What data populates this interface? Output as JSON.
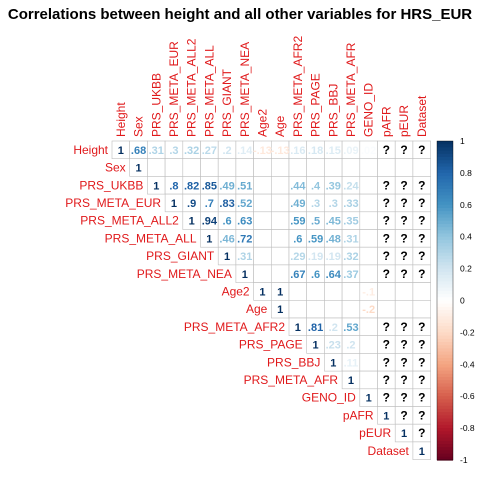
{
  "chart_data": {
    "type": "heatmap",
    "title": "Correlations between height and all other variables for HRS_EUR",
    "variables": [
      "Height",
      "Sex",
      "PRS_UKBB",
      "PRS_META_EUR",
      "PRS_META_ALL2",
      "PRS_META_ALL",
      "PRS_GIANT",
      "PRS_META_NEA",
      "Age2",
      "Age",
      "PRS_META_AFR2",
      "PRS_PAGE",
      "PRS_BBJ",
      "PRS_META_AFR",
      "GENO_ID",
      "pAFR",
      "pEUR",
      "Dataset"
    ],
    "layout": "upper-triangle",
    "missing_label": "?",
    "colorbar": {
      "min": -1,
      "max": 1,
      "ticks": [
        -1,
        -0.8,
        -0.6,
        -0.4,
        -0.2,
        0,
        0.2,
        0.4,
        0.6,
        0.8,
        1
      ]
    },
    "colors": {
      "neg": "#67001f",
      "mid": "#ffffff",
      "pos": "#053061",
      "label": "#e0191b"
    },
    "cells": [
      {
        "row": "Height",
        "col": "Height",
        "value": 1
      },
      {
        "row": "Height",
        "col": "Sex",
        "value": 0.68
      },
      {
        "row": "Height",
        "col": "PRS_UKBB",
        "value": 0.31
      },
      {
        "row": "Height",
        "col": "PRS_META_EUR",
        "value": 0.3
      },
      {
        "row": "Height",
        "col": "PRS_META_ALL2",
        "value": 0.32
      },
      {
        "row": "Height",
        "col": "PRS_META_ALL",
        "value": 0.27
      },
      {
        "row": "Height",
        "col": "PRS_GIANT",
        "value": 0.2
      },
      {
        "row": "Height",
        "col": "PRS_META_NEA",
        "value": 0.14
      },
      {
        "row": "Height",
        "col": "Age2",
        "value": -0.13
      },
      {
        "row": "Height",
        "col": "Age",
        "value": -0.13
      },
      {
        "row": "Height",
        "col": "PRS_META_AFR2",
        "value": 0.16
      },
      {
        "row": "Height",
        "col": "PRS_PAGE",
        "value": 0.18
      },
      {
        "row": "Height",
        "col": "PRS_BBJ",
        "value": 0.15
      },
      {
        "row": "Height",
        "col": "PRS_META_AFR",
        "value": 0.09
      },
      {
        "row": "Height",
        "col": "GENO_ID",
        "value": 0.02
      },
      {
        "row": "Height",
        "col": "pAFR",
        "value": null
      },
      {
        "row": "Height",
        "col": "pEUR",
        "value": null
      },
      {
        "row": "Height",
        "col": "Dataset",
        "value": null
      },
      {
        "row": "Sex",
        "col": "Sex",
        "value": 1
      },
      {
        "row": "PRS_UKBB",
        "col": "PRS_UKBB",
        "value": 1
      },
      {
        "row": "PRS_UKBB",
        "col": "PRS_META_EUR",
        "value": 0.8
      },
      {
        "row": "PRS_UKBB",
        "col": "PRS_META_ALL2",
        "value": 0.82
      },
      {
        "row": "PRS_UKBB",
        "col": "PRS_META_ALL",
        "value": 0.85
      },
      {
        "row": "PRS_UKBB",
        "col": "PRS_GIANT",
        "value": 0.49
      },
      {
        "row": "PRS_UKBB",
        "col": "PRS_META_NEA",
        "value": 0.51
      },
      {
        "row": "PRS_UKBB",
        "col": "PRS_META_AFR2",
        "value": 0.44
      },
      {
        "row": "PRS_UKBB",
        "col": "PRS_PAGE",
        "value": 0.4
      },
      {
        "row": "PRS_UKBB",
        "col": "PRS_BBJ",
        "value": 0.39
      },
      {
        "row": "PRS_UKBB",
        "col": "PRS_META_AFR",
        "value": 0.24
      },
      {
        "row": "PRS_UKBB",
        "col": "pAFR",
        "value": null
      },
      {
        "row": "PRS_UKBB",
        "col": "pEUR",
        "value": null
      },
      {
        "row": "PRS_UKBB",
        "col": "Dataset",
        "value": null
      },
      {
        "row": "PRS_META_EUR",
        "col": "PRS_META_EUR",
        "value": 1
      },
      {
        "row": "PRS_META_EUR",
        "col": "PRS_META_ALL2",
        "value": 0.9
      },
      {
        "row": "PRS_META_EUR",
        "col": "PRS_META_ALL",
        "value": 0.7
      },
      {
        "row": "PRS_META_EUR",
        "col": "PRS_GIANT",
        "value": 0.83
      },
      {
        "row": "PRS_META_EUR",
        "col": "PRS_META_NEA",
        "value": 0.52
      },
      {
        "row": "PRS_META_EUR",
        "col": "PRS_META_AFR2",
        "value": 0.49
      },
      {
        "row": "PRS_META_EUR",
        "col": "PRS_PAGE",
        "value": 0.3
      },
      {
        "row": "PRS_META_EUR",
        "col": "PRS_BBJ",
        "value": 0.3
      },
      {
        "row": "PRS_META_EUR",
        "col": "PRS_META_AFR",
        "value": 0.33
      },
      {
        "row": "PRS_META_EUR",
        "col": "pAFR",
        "value": null
      },
      {
        "row": "PRS_META_EUR",
        "col": "pEUR",
        "value": null
      },
      {
        "row": "PRS_META_EUR",
        "col": "Dataset",
        "value": null
      },
      {
        "row": "PRS_META_ALL2",
        "col": "PRS_META_ALL2",
        "value": 1
      },
      {
        "row": "PRS_META_ALL2",
        "col": "PRS_META_ALL",
        "value": 0.94
      },
      {
        "row": "PRS_META_ALL2",
        "col": "PRS_GIANT",
        "value": 0.6
      },
      {
        "row": "PRS_META_ALL2",
        "col": "PRS_META_NEA",
        "value": 0.63
      },
      {
        "row": "PRS_META_ALL2",
        "col": "PRS_META_AFR2",
        "value": 0.59
      },
      {
        "row": "PRS_META_ALL2",
        "col": "PRS_PAGE",
        "value": 0.5
      },
      {
        "row": "PRS_META_ALL2",
        "col": "PRS_BBJ",
        "value": 0.45
      },
      {
        "row": "PRS_META_ALL2",
        "col": "PRS_META_AFR",
        "value": 0.35
      },
      {
        "row": "PRS_META_ALL2",
        "col": "pAFR",
        "value": null
      },
      {
        "row": "PRS_META_ALL2",
        "col": "pEUR",
        "value": null
      },
      {
        "row": "PRS_META_ALL2",
        "col": "Dataset",
        "value": null
      },
      {
        "row": "PRS_META_ALL",
        "col": "PRS_META_ALL",
        "value": 1
      },
      {
        "row": "PRS_META_ALL",
        "col": "PRS_GIANT",
        "value": 0.46
      },
      {
        "row": "PRS_META_ALL",
        "col": "PRS_META_NEA",
        "value": 0.72
      },
      {
        "row": "PRS_META_ALL",
        "col": "PRS_META_AFR2",
        "value": 0.6
      },
      {
        "row": "PRS_META_ALL",
        "col": "PRS_PAGE",
        "value": 0.59
      },
      {
        "row": "PRS_META_ALL",
        "col": "PRS_BBJ",
        "value": 0.48
      },
      {
        "row": "PRS_META_ALL",
        "col": "PRS_META_AFR",
        "value": 0.31
      },
      {
        "row": "PRS_META_ALL",
        "col": "pAFR",
        "value": null
      },
      {
        "row": "PRS_META_ALL",
        "col": "pEUR",
        "value": null
      },
      {
        "row": "PRS_META_ALL",
        "col": "Dataset",
        "value": null
      },
      {
        "row": "PRS_GIANT",
        "col": "PRS_GIANT",
        "value": 1
      },
      {
        "row": "PRS_GIANT",
        "col": "PRS_META_NEA",
        "value": 0.31
      },
      {
        "row": "PRS_GIANT",
        "col": "PRS_META_AFR2",
        "value": 0.29
      },
      {
        "row": "PRS_GIANT",
        "col": "PRS_PAGE",
        "value": 0.19
      },
      {
        "row": "PRS_GIANT",
        "col": "PRS_BBJ",
        "value": 0.19
      },
      {
        "row": "PRS_GIANT",
        "col": "PRS_META_AFR",
        "value": 0.32
      },
      {
        "row": "PRS_GIANT",
        "col": "pAFR",
        "value": null
      },
      {
        "row": "PRS_GIANT",
        "col": "pEUR",
        "value": null
      },
      {
        "row": "PRS_GIANT",
        "col": "Dataset",
        "value": null
      },
      {
        "row": "PRS_META_NEA",
        "col": "PRS_META_NEA",
        "value": 1
      },
      {
        "row": "PRS_META_NEA",
        "col": "PRS_META_AFR2",
        "value": 0.67
      },
      {
        "row": "PRS_META_NEA",
        "col": "PRS_PAGE",
        "value": 0.6
      },
      {
        "row": "PRS_META_NEA",
        "col": "PRS_BBJ",
        "value": 0.64
      },
      {
        "row": "PRS_META_NEA",
        "col": "PRS_META_AFR",
        "value": 0.37
      },
      {
        "row": "PRS_META_NEA",
        "col": "pAFR",
        "value": null
      },
      {
        "row": "PRS_META_NEA",
        "col": "pEUR",
        "value": null
      },
      {
        "row": "PRS_META_NEA",
        "col": "Dataset",
        "value": null
      },
      {
        "row": "Age2",
        "col": "Age2",
        "value": 1
      },
      {
        "row": "Age2",
        "col": "Age",
        "value": 1
      },
      {
        "row": "Age2",
        "col": "GENO_ID",
        "value": -0.1
      },
      {
        "row": "Age",
        "col": "Age",
        "value": 1
      },
      {
        "row": "Age",
        "col": "GENO_ID",
        "value": -0.2
      },
      {
        "row": "PRS_META_AFR2",
        "col": "PRS_META_AFR2",
        "value": 1
      },
      {
        "row": "PRS_META_AFR2",
        "col": "PRS_PAGE",
        "value": 0.81
      },
      {
        "row": "PRS_META_AFR2",
        "col": "PRS_BBJ",
        "value": 0.2
      },
      {
        "row": "PRS_META_AFR2",
        "col": "PRS_META_AFR",
        "value": 0.53
      },
      {
        "row": "PRS_META_AFR2",
        "col": "pAFR",
        "value": null
      },
      {
        "row": "PRS_META_AFR2",
        "col": "pEUR",
        "value": null
      },
      {
        "row": "PRS_META_AFR2",
        "col": "Dataset",
        "value": null
      },
      {
        "row": "PRS_PAGE",
        "col": "PRS_PAGE",
        "value": 1
      },
      {
        "row": "PRS_PAGE",
        "col": "PRS_BBJ",
        "value": 0.23
      },
      {
        "row": "PRS_PAGE",
        "col": "PRS_META_AFR",
        "value": 0.2
      },
      {
        "row": "PRS_PAGE",
        "col": "pAFR",
        "value": null
      },
      {
        "row": "PRS_PAGE",
        "col": "pEUR",
        "value": null
      },
      {
        "row": "PRS_PAGE",
        "col": "Dataset",
        "value": null
      },
      {
        "row": "PRS_BBJ",
        "col": "PRS_BBJ",
        "value": 1
      },
      {
        "row": "PRS_BBJ",
        "col": "PRS_META_AFR",
        "value": 0.11
      },
      {
        "row": "PRS_BBJ",
        "col": "pAFR",
        "value": null
      },
      {
        "row": "PRS_BBJ",
        "col": "pEUR",
        "value": null
      },
      {
        "row": "PRS_BBJ",
        "col": "Dataset",
        "value": null
      },
      {
        "row": "PRS_META_AFR",
        "col": "PRS_META_AFR",
        "value": 1
      },
      {
        "row": "PRS_META_AFR",
        "col": "pAFR",
        "value": null
      },
      {
        "row": "PRS_META_AFR",
        "col": "pEUR",
        "value": null
      },
      {
        "row": "PRS_META_AFR",
        "col": "Dataset",
        "value": null
      },
      {
        "row": "GENO_ID",
        "col": "GENO_ID",
        "value": 1
      },
      {
        "row": "GENO_ID",
        "col": "pAFR",
        "value": null
      },
      {
        "row": "GENO_ID",
        "col": "pEUR",
        "value": null
      },
      {
        "row": "GENO_ID",
        "col": "Dataset",
        "value": null
      },
      {
        "row": "pAFR",
        "col": "pAFR",
        "value": 1
      },
      {
        "row": "pAFR",
        "col": "pEUR",
        "value": null
      },
      {
        "row": "pAFR",
        "col": "Dataset",
        "value": null
      },
      {
        "row": "pEUR",
        "col": "pEUR",
        "value": 1
      },
      {
        "row": "pEUR",
        "col": "Dataset",
        "value": null
      },
      {
        "row": "Dataset",
        "col": "Dataset",
        "value": 1
      }
    ]
  }
}
